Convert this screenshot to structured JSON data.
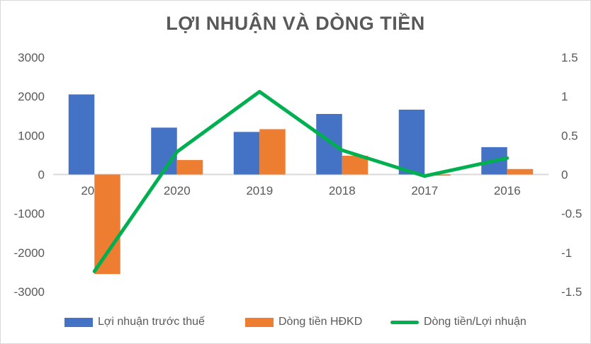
{
  "chart_data": {
    "type": "combo",
    "title": "LỢI NHUẬN VÀ DÒNG TIỀN",
    "categories": [
      "2021",
      "2020",
      "2019",
      "2018",
      "2017",
      "2016"
    ],
    "series": [
      {
        "name": "Lợi nhuận trước thuế",
        "type": "bar",
        "axis": "left",
        "color": "#4472C4",
        "values": [
          2050,
          1200,
          1090,
          1550,
          1660,
          700
        ]
      },
      {
        "name": "Dòng tiền HĐKD",
        "type": "bar",
        "axis": "left",
        "color": "#ED7D31",
        "values": [
          -2550,
          370,
          1160,
          480,
          -30,
          140
        ]
      },
      {
        "name": "Dòng tiền/Lợi nhuận",
        "type": "line",
        "axis": "right",
        "color": "#00B050",
        "values": [
          -1.24,
          0.29,
          1.06,
          0.31,
          -0.02,
          0.21
        ]
      }
    ],
    "left_axis": {
      "min": -3000,
      "max": 3000,
      "step": 1000,
      "ticks": [
        "3000",
        "2000",
        "1000",
        "0",
        "-1000",
        "-2000",
        "-3000"
      ]
    },
    "right_axis": {
      "min": -1.5,
      "max": 1.5,
      "step": 0.5,
      "ticks": [
        "1.5",
        "1",
        "0.5",
        "0",
        "-0.5",
        "-1",
        "-1.5"
      ]
    },
    "grid": false,
    "legend_position": "bottom"
  },
  "colors": {
    "title": "#595959",
    "axis_labels": "#595959",
    "zero_line": "#D9D9D9",
    "border": "#D9D9D9",
    "background": "#FFFFFF"
  }
}
